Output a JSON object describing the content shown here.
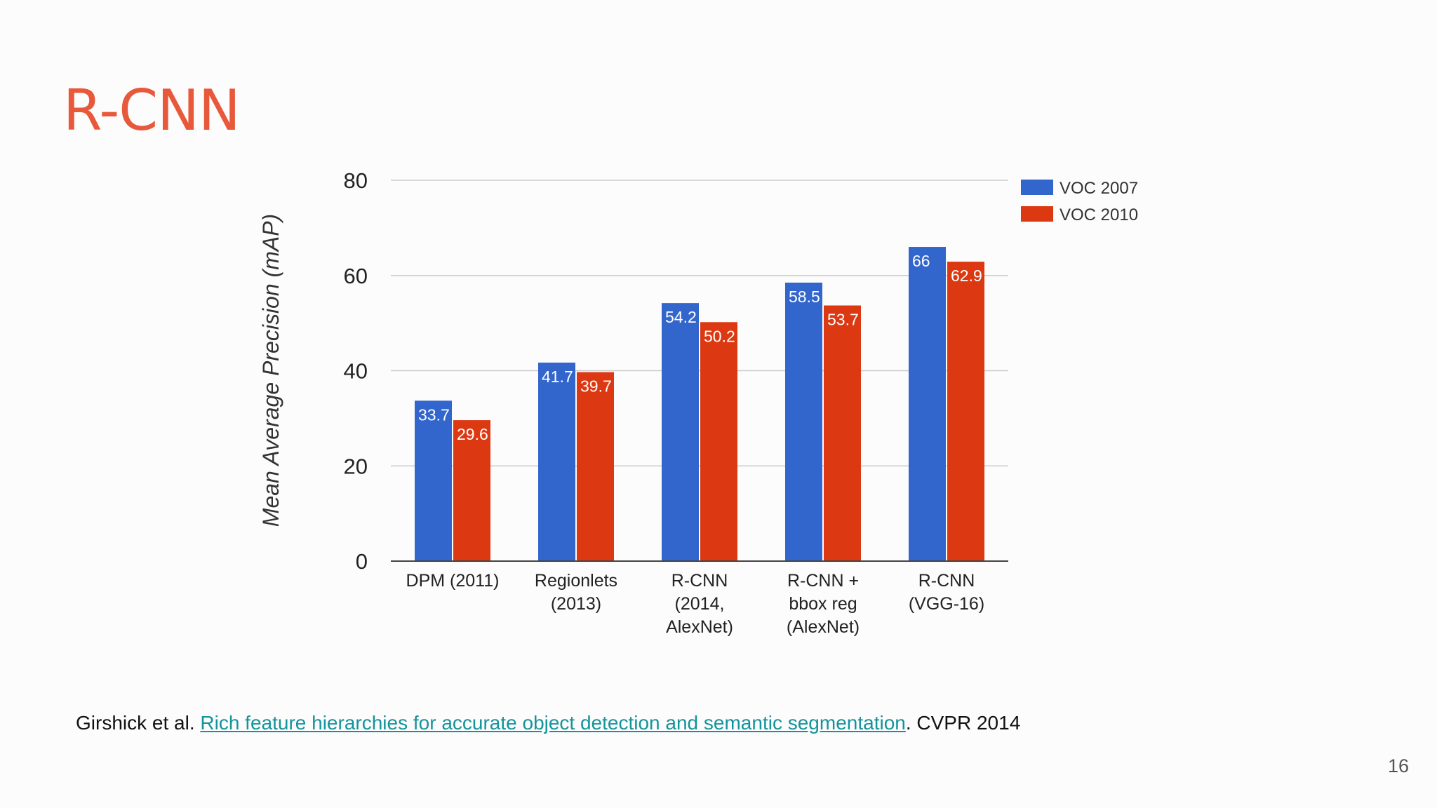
{
  "slide": {
    "title": "R-CNN",
    "page_number": "16"
  },
  "citation": {
    "authors": "Girshick et al. ",
    "link_text": "Rich feature hierarchies for accurate object detection and semantic segmentation",
    "suffix": ". CVPR 2014"
  },
  "chart_data": {
    "type": "bar",
    "title": "",
    "xlabel": "",
    "ylabel": "Mean Average Precision (mAP)",
    "ylim": [
      0,
      80
    ],
    "yticks": [
      0,
      20,
      40,
      60,
      80
    ],
    "grid": true,
    "legend_position": "top-right",
    "categories": [
      [
        "DPM (2011)"
      ],
      [
        "Regionlets",
        "(2013)"
      ],
      [
        "R-CNN",
        "(2014,",
        "AlexNet)"
      ],
      [
        "R-CNN +",
        "bbox reg",
        "(AlexNet)"
      ],
      [
        "R-CNN",
        "(VGG-16)"
      ]
    ],
    "series": [
      {
        "name": "VOC 2007",
        "color": "#3366cc",
        "values": [
          33.7,
          41.7,
          54.2,
          58.5,
          66
        ]
      },
      {
        "name": "VOC 2010",
        "color": "#dc3912",
        "values": [
          29.6,
          39.7,
          50.2,
          53.7,
          62.9
        ]
      }
    ],
    "data_labels": true
  }
}
